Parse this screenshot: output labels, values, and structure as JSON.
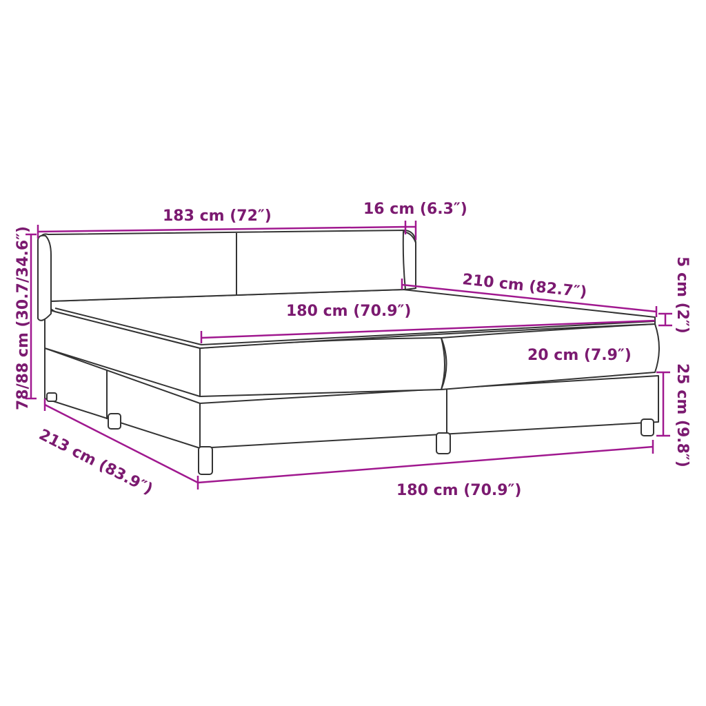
{
  "colors": {
    "label": "#7b1a70",
    "dimension_line": "#a0188f",
    "outline": "#333333"
  },
  "dimensions": {
    "headboard_width": "183 cm (72″)",
    "headboard_depth": "16 cm (6.3″)",
    "length": "210 cm (82.7″)",
    "mattress_width": "180 cm (70.9″)",
    "topper_height": "5 cm (2″)",
    "mattress_height": "20 cm (7.9″)",
    "base_height": "25 cm (9.8″)",
    "total_height": "78/88 cm (30.7/34.6″)",
    "total_length": "213 cm (83.9″)",
    "base_width": "180 cm (70.9″)"
  }
}
